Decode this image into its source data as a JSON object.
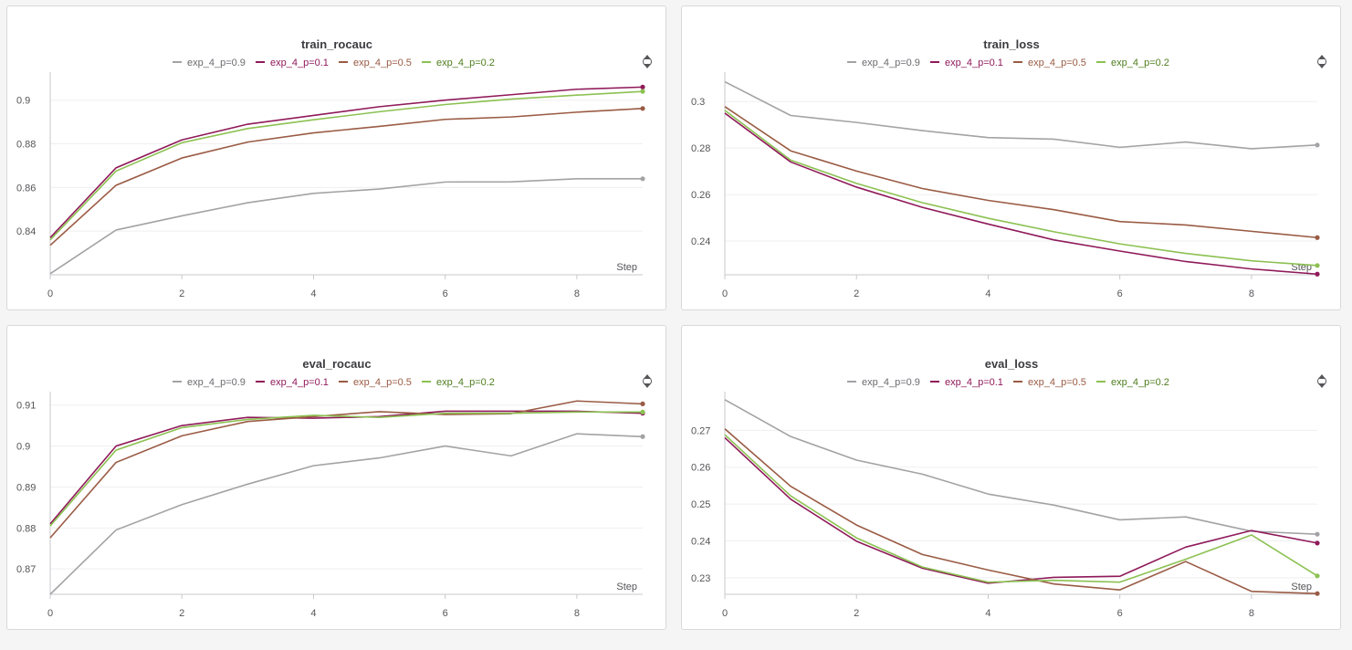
{
  "colors": {
    "exp_4_p=0.9": "#a3a3a6",
    "exp_4_p=0.1": "#8f1a5a",
    "exp_4_p=0.5": "#9a5b44",
    "exp_4_p=0.2": "#8cc152"
  },
  "legend_text_colors": {
    "exp_4_p=0.9": "#6b6b70",
    "exp_4_p=0.1": "#8f1a5a",
    "exp_4_p=0.5": "#9a5b44",
    "exp_4_p=0.2": "#4e7d1e"
  },
  "chart_data": [
    {
      "type": "line",
      "title": "train_rocauc",
      "xlabel": "Step",
      "ylabel": "",
      "x": [
        0,
        1,
        2,
        3,
        4,
        5,
        6,
        7,
        8,
        9
      ],
      "xticks": [
        0,
        2,
        4,
        6,
        8
      ],
      "yticks": [
        0.84,
        0.86,
        0.88,
        0.9
      ],
      "ytick_labels": [
        "0.84",
        "0.86",
        "0.88",
        "0.9"
      ],
      "xlim": [
        0,
        9
      ],
      "ylim": [
        0.82,
        0.9095
      ],
      "legend": "top",
      "grid": true,
      "series": [
        {
          "name": "exp_4_p=0.9",
          "values": [
            0.8205,
            0.8405,
            0.847,
            0.853,
            0.8573,
            0.8593,
            0.8625,
            0.8626,
            0.864,
            0.864
          ]
        },
        {
          "name": "exp_4_p=0.1",
          "values": [
            0.837,
            0.869,
            0.8818,
            0.889,
            0.893,
            0.897,
            0.9,
            0.9025,
            0.905,
            0.906
          ]
        },
        {
          "name": "exp_4_p=0.5",
          "values": [
            0.8335,
            0.861,
            0.8735,
            0.8808,
            0.885,
            0.888,
            0.8912,
            0.8923,
            0.8945,
            0.8962
          ]
        },
        {
          "name": "exp_4_p=0.2",
          "values": [
            0.836,
            0.8675,
            0.8805,
            0.887,
            0.891,
            0.8947,
            0.898,
            0.9005,
            0.9023,
            0.904
          ]
        }
      ]
    },
    {
      "type": "line",
      "title": "train_loss",
      "xlabel": "Step",
      "ylabel": "",
      "x": [
        0,
        1,
        2,
        3,
        4,
        5,
        6,
        7,
        8,
        9
      ],
      "xticks": [
        0,
        2,
        4,
        6,
        8
      ],
      "yticks": [
        0.24,
        0.26,
        0.28,
        0.3
      ],
      "ytick_labels": [
        "0.24",
        "0.26",
        "0.28",
        "0.3"
      ],
      "xlim": [
        0,
        9
      ],
      "ylim": [
        0.2255,
        0.3095
      ],
      "legend": "top",
      "grid": true,
      "series": [
        {
          "name": "exp_4_p=0.9",
          "values": [
            0.3085,
            0.294,
            0.291,
            0.2875,
            0.2845,
            0.2838,
            0.2803,
            0.2826,
            0.2797,
            0.2813
          ]
        },
        {
          "name": "exp_4_p=0.1",
          "values": [
            0.295,
            0.274,
            0.2632,
            0.2545,
            0.2473,
            0.2405,
            0.2357,
            0.2312,
            0.228,
            0.2258
          ]
        },
        {
          "name": "exp_4_p=0.5",
          "values": [
            0.2978,
            0.2788,
            0.2701,
            0.2626,
            0.2575,
            0.2535,
            0.2484,
            0.2469,
            0.2442,
            0.2415
          ]
        },
        {
          "name": "exp_4_p=0.2",
          "values": [
            0.2962,
            0.2748,
            0.2648,
            0.2565,
            0.2498,
            0.244,
            0.2388,
            0.2347,
            0.2315,
            0.2295
          ]
        }
      ]
    },
    {
      "type": "line",
      "title": "eval_rocauc",
      "xlabel": "Step",
      "ylabel": "",
      "x": [
        0,
        1,
        2,
        3,
        4,
        5,
        6,
        7,
        8,
        9
      ],
      "xticks": [
        0,
        2,
        4,
        6,
        8
      ],
      "yticks": [
        0.87,
        0.88,
        0.89,
        0.9,
        0.91
      ],
      "ytick_labels": [
        "0.87",
        "0.88",
        "0.89",
        "0.9",
        "0.91"
      ],
      "xlim": [
        0,
        9
      ],
      "ylim": [
        0.8638,
        0.9115
      ],
      "legend": "top",
      "grid": true,
      "series": [
        {
          "name": "exp_4_p=0.9",
          "values": [
            0.8638,
            0.8795,
            0.8857,
            0.8907,
            0.8952,
            0.8971,
            0.9,
            0.8976,
            0.903,
            0.9023
          ]
        },
        {
          "name": "exp_4_p=0.1",
          "values": [
            0.881,
            0.9,
            0.905,
            0.907,
            0.9068,
            0.9072,
            0.9085,
            0.9085,
            0.9085,
            0.908
          ]
        },
        {
          "name": "exp_4_p=0.5",
          "values": [
            0.8776,
            0.896,
            0.9025,
            0.906,
            0.9072,
            0.9084,
            0.9077,
            0.9079,
            0.911,
            0.9103
          ]
        },
        {
          "name": "exp_4_p=0.2",
          "values": [
            0.8805,
            0.899,
            0.9045,
            0.9065,
            0.9075,
            0.907,
            0.908,
            0.908,
            0.9083,
            0.9083
          ]
        }
      ]
    },
    {
      "type": "line",
      "title": "eval_loss",
      "xlabel": "Step",
      "ylabel": "",
      "x": [
        0,
        1,
        2,
        3,
        4,
        5,
        6,
        7,
        8,
        9
      ],
      "xticks": [
        0,
        2,
        4,
        6,
        8
      ],
      "yticks": [
        0.23,
        0.24,
        0.25,
        0.26,
        0.27
      ],
      "ytick_labels": [
        "0.23",
        "0.24",
        "0.25",
        "0.26",
        "0.27"
      ],
      "xlim": [
        0,
        9
      ],
      "ylim": [
        0.2255,
        0.2785
      ],
      "legend": "top",
      "grid": true,
      "series": [
        {
          "name": "exp_4_p=0.9",
          "values": [
            0.2783,
            0.2683,
            0.2619,
            0.2581,
            0.2527,
            0.2497,
            0.2457,
            0.2465,
            0.2426,
            0.2418
          ]
        },
        {
          "name": "exp_4_p=0.1",
          "values": [
            0.268,
            0.2513,
            0.2399,
            0.2326,
            0.2285,
            0.2301,
            0.2304,
            0.2383,
            0.2428,
            0.2394
          ]
        },
        {
          "name": "exp_4_p=0.5",
          "values": [
            0.2704,
            0.2548,
            0.2443,
            0.2363,
            0.2321,
            0.2283,
            0.2267,
            0.2344,
            0.2263,
            0.2257
          ]
        },
        {
          "name": "exp_4_p=0.2",
          "values": [
            0.2688,
            0.2522,
            0.2408,
            0.2329,
            0.2288,
            0.2293,
            0.2288,
            0.235,
            0.2416,
            0.2305
          ]
        }
      ]
    }
  ]
}
